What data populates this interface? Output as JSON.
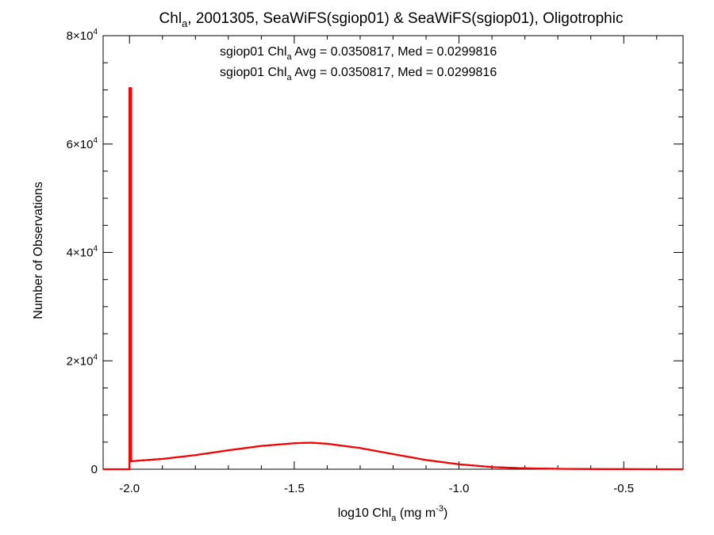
{
  "chart_data": {
    "type": "line",
    "title": {
      "pre": "Chl",
      "sub": "a",
      "post": ", 2001305, SeaWiFS(sgiop01) & SeaWiFS(sgiop01), Oligotrophic"
    },
    "xlabel": {
      "pre": "log10 Chl",
      "sub": "a",
      "mid": " (mg m",
      "sup": "-3",
      "post": ")"
    },
    "ylabel": "Number of Observations",
    "xlim": [
      -2.08,
      -0.32
    ],
    "ylim": [
      0,
      80000
    ],
    "x_ticks": [
      {
        "value": -2.0,
        "label": "-2.0"
      },
      {
        "value": -1.5,
        "label": "-1.5"
      },
      {
        "value": -1.0,
        "label": "-1.0"
      },
      {
        "value": -0.5,
        "label": "-0.5"
      }
    ],
    "y_ticks": [
      {
        "value": 0,
        "base": "0",
        "exp": ""
      },
      {
        "value": 20000,
        "base": "2×10",
        "exp": "4"
      },
      {
        "value": 40000,
        "base": "4×10",
        "exp": "4"
      },
      {
        "value": 60000,
        "base": "6×10",
        "exp": "4"
      },
      {
        "value": 80000,
        "base": "8×10",
        "exp": "4"
      }
    ],
    "legend": [
      {
        "pre": "sgiop01 Chl",
        "sub": "a",
        "post": " Avg = 0.0350817, Med = 0.0299816",
        "color": "#000000"
      },
      {
        "pre": "sgiop01 Chl",
        "sub": "a",
        "post": " Avg = 0.0350817, Med = 0.0299816",
        "color": "#ff0000"
      }
    ],
    "series": [
      {
        "color": "#000000",
        "x": [
          -2.08,
          -2.0,
          -2.0,
          -1.995,
          -1.995,
          -1.99,
          -1.9,
          -1.8,
          -1.7,
          -1.6,
          -1.5,
          -1.45,
          -1.4,
          -1.3,
          -1.2,
          -1.1,
          -1.0,
          -0.9,
          -0.8,
          -0.7,
          -0.6,
          -0.5,
          -0.4,
          -0.32
        ],
        "values": [
          0,
          0,
          70300,
          70300,
          1500,
          1500,
          1900,
          2600,
          3500,
          4300,
          4800,
          4900,
          4700,
          3900,
          2800,
          1700,
          900,
          400,
          180,
          80,
          30,
          10,
          5,
          0
        ]
      },
      {
        "color": "#ff0000",
        "x": [
          -2.08,
          -2.0,
          -2.0,
          -1.995,
          -1.995,
          -1.99,
          -1.9,
          -1.8,
          -1.7,
          -1.6,
          -1.5,
          -1.45,
          -1.4,
          -1.3,
          -1.2,
          -1.1,
          -1.0,
          -0.9,
          -0.8,
          -0.7,
          -0.6,
          -0.5,
          -0.4,
          -0.32
        ],
        "values": [
          0,
          0,
          70300,
          70300,
          1500,
          1500,
          1900,
          2600,
          3500,
          4300,
          4800,
          4900,
          4700,
          3900,
          2800,
          1700,
          900,
          400,
          180,
          80,
          30,
          10,
          5,
          0
        ]
      }
    ]
  }
}
